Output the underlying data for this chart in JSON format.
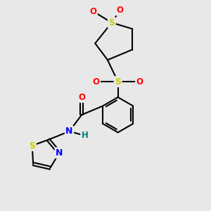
{
  "background_color": "#e8e8e8",
  "bond_color": "#000000",
  "atom_colors": {
    "S": "#cccc00",
    "O": "#ff0000",
    "N": "#0000ff",
    "C": "#000000",
    "H": "#008080"
  },
  "figsize": [
    3.0,
    3.0
  ],
  "dpi": 100
}
